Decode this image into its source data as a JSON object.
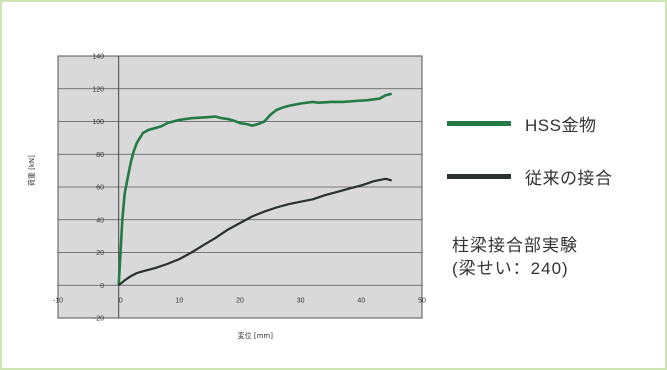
{
  "chart_data": {
    "type": "line",
    "xlabel": "変位 [mm]",
    "ylabel": "荷重 [kN]",
    "xlim": [
      -10,
      50
    ],
    "ylim": [
      -20,
      140
    ],
    "x_ticks": [
      "-10",
      "0",
      "10",
      "20",
      "30",
      "40",
      "50"
    ],
    "y_ticks": [
      "140",
      "120",
      "100",
      "80",
      "60",
      "40",
      "20",
      "0",
      "-20"
    ],
    "grid": "horizontal",
    "legend_position": "right",
    "plot_background": "#d9d9d9",
    "series": [
      {
        "name": "HSS金物",
        "color": "#237a45",
        "x": [
          0,
          0.3,
          0.6,
          1,
          1.5,
          2,
          2.5,
          3,
          3.5,
          4,
          5,
          6,
          7,
          8,
          10,
          12,
          14,
          16,
          17,
          18,
          19,
          20,
          21,
          22,
          23,
          24,
          25,
          26,
          27,
          28,
          30,
          32,
          33,
          35,
          37,
          39,
          41,
          42,
          43,
          44,
          45
        ],
        "y": [
          0,
          20,
          40,
          56,
          66,
          75,
          82,
          87,
          90,
          93,
          95,
          96,
          97,
          99,
          101,
          102,
          102.5,
          103,
          102,
          101.5,
          100.5,
          99,
          98.5,
          97.5,
          98.5,
          100,
          104,
          107,
          108.5,
          109.5,
          111,
          112,
          111.5,
          112,
          112,
          112.5,
          113,
          113.5,
          114,
          116,
          117
        ]
      },
      {
        "name": "従来の接合",
        "color": "#2a302c",
        "x": [
          0,
          1,
          2,
          3,
          4,
          5,
          6,
          8,
          10,
          12,
          14,
          16,
          18,
          20,
          22,
          24,
          26,
          28,
          30,
          32,
          34,
          36,
          38,
          40,
          42,
          44,
          45
        ],
        "y": [
          0,
          3,
          5.5,
          7.5,
          8.5,
          9.5,
          10.5,
          13,
          16,
          20,
          24.5,
          29,
          34,
          38,
          42,
          45,
          47.5,
          49.5,
          51,
          52.5,
          55,
          57,
          59,
          61,
          63.5,
          65,
          64
        ]
      }
    ]
  },
  "legend": [
    {
      "label": "HSS金物",
      "color": "#237a45"
    },
    {
      "label": "従来の接合",
      "color": "#2a302c"
    }
  ],
  "caption": {
    "line1": "柱梁接合部実験",
    "line2": "(梁せい：240)"
  }
}
